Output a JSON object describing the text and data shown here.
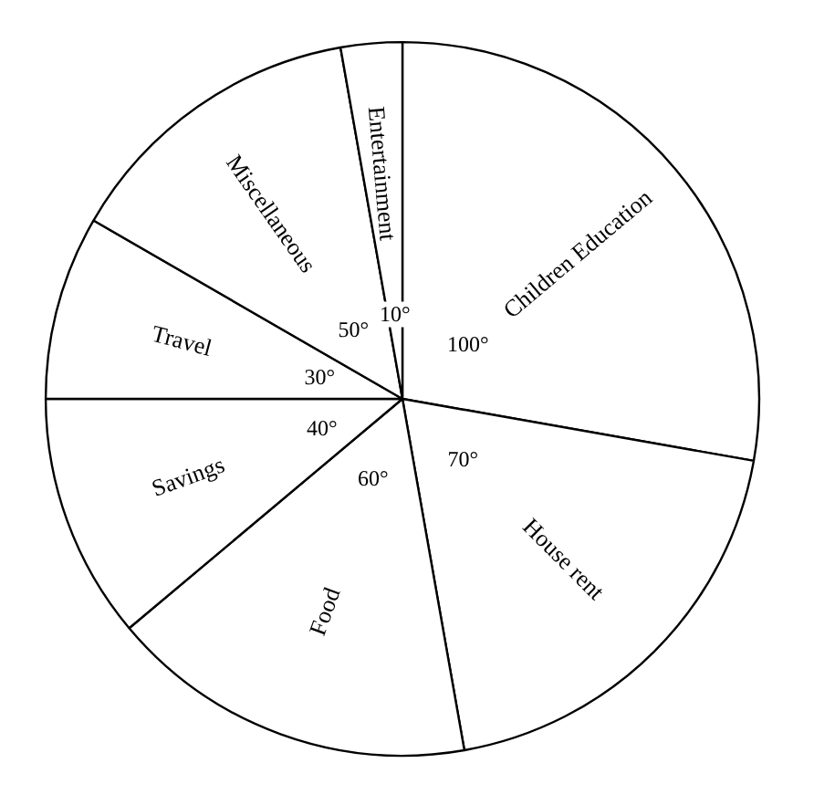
{
  "chart_data": {
    "type": "pie",
    "categories": [
      "Children Education",
      "House rent",
      "Food",
      "Savings",
      "Travel",
      "Miscellaneous",
      "Entertainment"
    ],
    "values": [
      100,
      70,
      60,
      40,
      30,
      50,
      10
    ],
    "value_labels": [
      "100°",
      "70°",
      "60°",
      "40°",
      "30°",
      "50°",
      "10°"
    ],
    "colors": [
      "#ffffff",
      "#ffffff",
      "#ffffff",
      "#ffffff",
      "#ffffff",
      "#ffffff",
      "#ffffff"
    ]
  }
}
